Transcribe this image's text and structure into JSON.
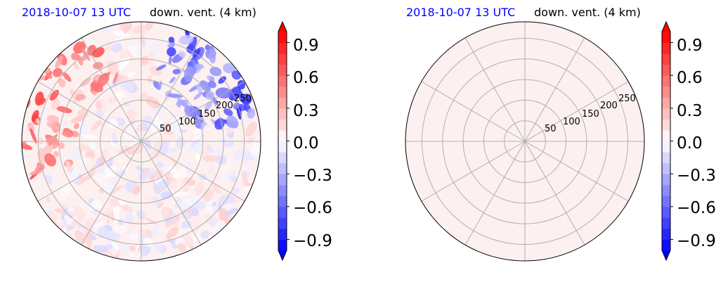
{
  "chart_data": [
    {
      "type": "heatmap",
      "projection": "polar",
      "title_left": "2018-10-07 13 UTC",
      "title_right": "down. vent. (4 km)",
      "radial_ticks": [
        "50",
        "100",
        "150",
        "200",
        "250"
      ],
      "radial_tick_values": [
        50,
        100,
        150,
        200,
        250
      ],
      "r_max": 290,
      "angular_grid_deg": [
        0,
        30,
        60,
        90,
        120,
        150,
        180,
        210,
        240,
        270,
        300,
        330
      ],
      "grid": true,
      "field": "structured small-scale pattern; positive (red) near west and north-west edge, negative (blue) near north-east edge, weak values elsewhere",
      "colorbar": {
        "label": "",
        "ticks": [
          "0.9",
          "0.6",
          "0.3",
          "0.0",
          "−0.3",
          "−0.6",
          "−0.9"
        ],
        "tick_values": [
          0.9,
          0.6,
          0.3,
          0.0,
          -0.3,
          -0.6,
          -0.9
        ],
        "vmin": -1.0,
        "vmax": 1.0,
        "colormap": "bwr",
        "extend": "both"
      }
    },
    {
      "type": "heatmap",
      "projection": "polar",
      "title_left": "2018-10-07 13 UTC",
      "title_right": "down. vent. (4 km)",
      "radial_ticks": [
        "50",
        "100",
        "150",
        "200",
        "250"
      ],
      "radial_tick_values": [
        50,
        100,
        150,
        200,
        250
      ],
      "r_max": 290,
      "angular_grid_deg": [
        0,
        30,
        60,
        90,
        120,
        150,
        180,
        210,
        240,
        270,
        300,
        330
      ],
      "grid": true,
      "field": "uniform weak positive value",
      "colorbar": {
        "label": "",
        "ticks": [
          "0.9",
          "0.6",
          "0.3",
          "0.0",
          "−0.3",
          "−0.6",
          "−0.9"
        ],
        "tick_values": [
          0.9,
          0.6,
          0.3,
          0.0,
          -0.3,
          -0.6,
          -0.9
        ],
        "vmin": -1.0,
        "vmax": 1.0,
        "colormap": "bwr",
        "extend": "both"
      }
    }
  ],
  "colors": {
    "title_date": "#0000ff",
    "title_var": "#000000",
    "grid": "#b0b0b0",
    "background_fill": "#fdf0f0",
    "positive": "#ff0000",
    "negative": "#0000ff"
  }
}
